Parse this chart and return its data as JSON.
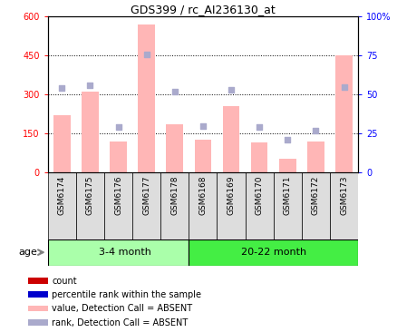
{
  "title": "GDS399 / rc_AI236130_at",
  "samples": [
    "GSM6174",
    "GSM6175",
    "GSM6176",
    "GSM6177",
    "GSM6178",
    "GSM6168",
    "GSM6169",
    "GSM6170",
    "GSM6171",
    "GSM6172",
    "GSM6173"
  ],
  "bar_values": [
    220,
    310,
    120,
    570,
    185,
    125,
    255,
    115,
    55,
    120,
    450
  ],
  "rank_values": [
    54,
    56,
    29,
    76,
    52,
    30,
    53,
    29,
    21,
    27,
    55
  ],
  "group1_label": "3-4 month",
  "group2_label": "20-22 month",
  "group1_count": 5,
  "group2_count": 6,
  "age_label": "age",
  "ylim_left": [
    0,
    600
  ],
  "ylim_right": [
    0,
    100
  ],
  "yticks_left": [
    0,
    150,
    300,
    450,
    600
  ],
  "ytick_labels_left": [
    "0",
    "150",
    "300",
    "450",
    "600"
  ],
  "yticks_right": [
    0,
    25,
    50,
    75,
    100
  ],
  "ytick_labels_right": [
    "0",
    "25",
    "50",
    "75",
    "100%"
  ],
  "bar_color": "#FFB6B6",
  "rank_color": "#AAAACC",
  "bg_color": "#DDDDDD",
  "group1_color": "#AAFFAA",
  "group2_color": "#44EE44",
  "legend_items": [
    {
      "color": "#CC0000",
      "label": "count"
    },
    {
      "color": "#0000CC",
      "label": "percentile rank within the sample"
    },
    {
      "color": "#FFB6B6",
      "label": "value, Detection Call = ABSENT"
    },
    {
      "color": "#AAAACC",
      "label": "rank, Detection Call = ABSENT"
    }
  ]
}
